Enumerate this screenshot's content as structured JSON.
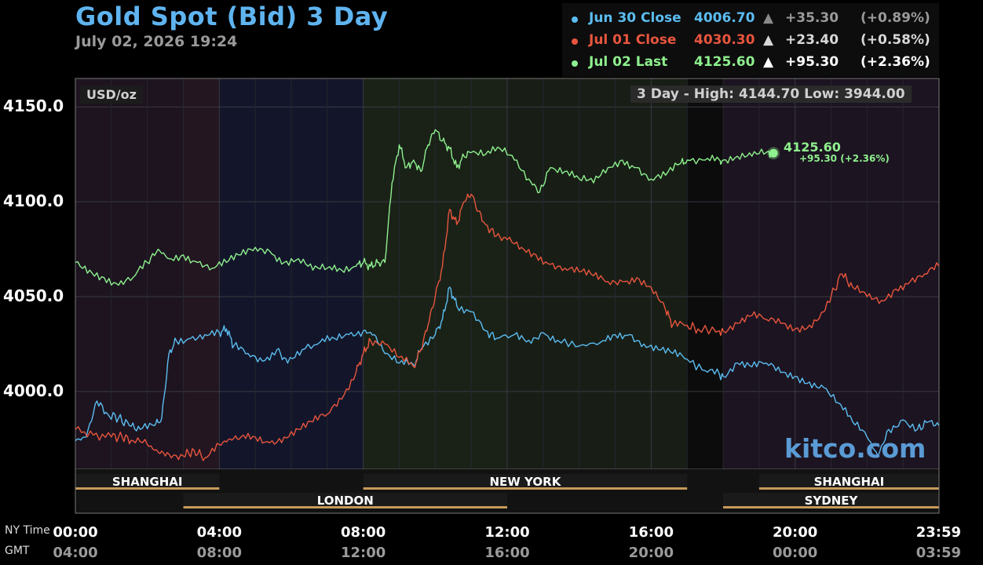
{
  "header": {
    "title": "Gold Spot (Bid) 3 Day",
    "timestamp": "July 02, 2026 19:24"
  },
  "legend": [
    {
      "label": "Jun 30 Close",
      "value": "4006.70",
      "arrow": "▲",
      "change": "+35.30",
      "pct": "(+0.89%)",
      "color": "#5bbcf0",
      "arrow_color": "#8a8a8a",
      "change_color": "#9a9a9a"
    },
    {
      "label": "Jul 01 Close",
      "value": "4030.30",
      "arrow": "▲",
      "change": "+23.40",
      "pct": "(+0.58%)",
      "color": "#e8553e",
      "arrow_color": "#d8d8d8",
      "change_color": "#d8d8d8"
    },
    {
      "label": "Jul 02 Last",
      "value": "4125.60",
      "arrow": "▲",
      "change": "+95.30",
      "pct": "(+2.36%)",
      "color": "#8ef08e",
      "arrow_color": "#ffffff",
      "change_color": "#ffffff"
    }
  ],
  "chart_info": {
    "units": "USD/oz",
    "hilo": "3 Day - High: 4144.70  Low: 3944.00",
    "last_label": "4125.60",
    "last_change": "+95.30 (+2.36%)",
    "watermark": "kitco.com",
    "ny_time_label": "NY Time",
    "gmt_label": "GMT"
  },
  "chart_data": {
    "type": "line",
    "ylim": [
      3959,
      4165
    ],
    "xlim_hours": [
      0,
      24
    ],
    "y_ticks": [
      {
        "value": 4000,
        "label": "4000.0"
      },
      {
        "value": 4050,
        "label": "4050.0"
      },
      {
        "value": 4100,
        "label": "4100.0"
      },
      {
        "value": 4150,
        "label": "4150.0"
      }
    ],
    "x_ticks": [
      {
        "hour": 0,
        "ny": "00:00",
        "gmt": "04:00"
      },
      {
        "hour": 4,
        "ny": "04:00",
        "gmt": "08:00"
      },
      {
        "hour": 8,
        "ny": "08:00",
        "gmt": "12:00"
      },
      {
        "hour": 12,
        "ny": "12:00",
        "gmt": "16:00"
      },
      {
        "hour": 16,
        "ny": "16:00",
        "gmt": "20:00"
      },
      {
        "hour": 20,
        "ny": "20:00",
        "gmt": "00:00"
      },
      {
        "hour": 23.98,
        "ny": "23:59",
        "gmt": "03:59"
      }
    ],
    "sessions": [
      {
        "name": "SHANGHAI",
        "start": 0,
        "end": 4,
        "row": 1
      },
      {
        "name": "NEW YORK",
        "start": 8,
        "end": 17,
        "row": 1
      },
      {
        "name": "SHANGHAI",
        "start": 19,
        "end": 24,
        "row": 1
      },
      {
        "name": "LONDON",
        "start": 3,
        "end": 12,
        "row": 2
      },
      {
        "name": "SYDNEY",
        "start": 18,
        "end": 24,
        "row": 2
      }
    ],
    "series": [
      {
        "name": "Jun 30 Close",
        "color": "#5bbcf0",
        "points": [
          [
            0,
            3974
          ],
          [
            0.3,
            3976
          ],
          [
            0.6,
            3995
          ],
          [
            0.9,
            3988
          ],
          [
            1.2,
            3986
          ],
          [
            1.5,
            3982
          ],
          [
            1.8,
            3980
          ],
          [
            2.2,
            3982
          ],
          [
            2.4,
            3986
          ],
          [
            2.6,
            4020
          ],
          [
            2.8,
            4027
          ],
          [
            3.2,
            4028
          ],
          [
            3.6,
            4030
          ],
          [
            4,
            4031
          ],
          [
            4.2,
            4033
          ],
          [
            4.4,
            4024
          ],
          [
            4.8,
            4020
          ],
          [
            5.2,
            4016
          ],
          [
            5.6,
            4022
          ],
          [
            5.9,
            4015
          ],
          [
            6.3,
            4022
          ],
          [
            6.8,
            4026
          ],
          [
            7.2,
            4028
          ],
          [
            7.6,
            4030
          ],
          [
            8,
            4032
          ],
          [
            8.3,
            4030
          ],
          [
            8.6,
            4020
          ],
          [
            9,
            4015
          ],
          [
            9.4,
            4014
          ],
          [
            9.6,
            4022
          ],
          [
            10,
            4030
          ],
          [
            10.2,
            4038
          ],
          [
            10.4,
            4055
          ],
          [
            10.6,
            4045
          ],
          [
            11,
            4042
          ],
          [
            11.4,
            4032
          ],
          [
            11.7,
            4028
          ],
          [
            12.2,
            4030
          ],
          [
            12.6,
            4027
          ],
          [
            13,
            4031
          ],
          [
            13.4,
            4027
          ],
          [
            14,
            4024
          ],
          [
            14.6,
            4026
          ],
          [
            15,
            4030
          ],
          [
            15.4,
            4030
          ],
          [
            15.8,
            4025
          ],
          [
            16.2,
            4022
          ],
          [
            16.6,
            4020
          ],
          [
            17,
            4017
          ],
          [
            17.5,
            4011
          ],
          [
            17.9,
            4009
          ],
          [
            18,
            4008
          ],
          [
            18.4,
            4015
          ],
          [
            18.8,
            4013
          ],
          [
            19.2,
            4015
          ],
          [
            19.6,
            4010
          ],
          [
            20,
            4008
          ],
          [
            20.4,
            4005
          ],
          [
            20.8,
            4002
          ],
          [
            21.2,
            3994
          ],
          [
            21.6,
            3984
          ],
          [
            22,
            3976
          ],
          [
            22.3,
            3966
          ],
          [
            22.6,
            3980
          ],
          [
            23,
            3985
          ],
          [
            23.4,
            3980
          ],
          [
            23.7,
            3984
          ],
          [
            24,
            3982
          ]
        ]
      },
      {
        "name": "Jul 01 Close",
        "color": "#e8553e",
        "points": [
          [
            0,
            3980
          ],
          [
            0.5,
            3977
          ],
          [
            1,
            3976
          ],
          [
            1.3,
            3976
          ],
          [
            1.6,
            3974
          ],
          [
            2,
            3972
          ],
          [
            2.3,
            3968
          ],
          [
            2.6,
            3967
          ],
          [
            3,
            3966
          ],
          [
            3.3,
            3969
          ],
          [
            3.6,
            3965
          ],
          [
            4,
            3972
          ],
          [
            4.3,
            3975
          ],
          [
            4.6,
            3976
          ],
          [
            5,
            3976
          ],
          [
            5.4,
            3973
          ],
          [
            5.8,
            3976
          ],
          [
            6.2,
            3980
          ],
          [
            6.6,
            3984
          ],
          [
            7,
            3988
          ],
          [
            7.4,
            3996
          ],
          [
            7.8,
            4010
          ],
          [
            8,
            4020
          ],
          [
            8.2,
            4027
          ],
          [
            8.6,
            4025
          ],
          [
            9,
            4018
          ],
          [
            9.4,
            4013
          ],
          [
            9.6,
            4022
          ],
          [
            9.8,
            4035
          ],
          [
            10,
            4050
          ],
          [
            10.2,
            4066
          ],
          [
            10.4,
            4096
          ],
          [
            10.6,
            4088
          ],
          [
            10.8,
            4100
          ],
          [
            11,
            4104
          ],
          [
            11.2,
            4095
          ],
          [
            11.4,
            4088
          ],
          [
            11.7,
            4082
          ],
          [
            12,
            4080
          ],
          [
            12.4,
            4076
          ],
          [
            12.8,
            4072
          ],
          [
            13.2,
            4067
          ],
          [
            13.6,
            4065
          ],
          [
            14,
            4063
          ],
          [
            14.4,
            4061
          ],
          [
            14.8,
            4058
          ],
          [
            15.2,
            4058
          ],
          [
            15.6,
            4060
          ],
          [
            16,
            4055
          ],
          [
            16.4,
            4043
          ],
          [
            16.6,
            4035
          ],
          [
            17,
            4035
          ],
          [
            17.3,
            4033
          ],
          [
            17.9,
            4032
          ],
          [
            18,
            4032
          ],
          [
            18.4,
            4036
          ],
          [
            18.8,
            4040
          ],
          [
            19.2,
            4038
          ],
          [
            19.6,
            4036
          ],
          [
            20,
            4033
          ],
          [
            20.4,
            4035
          ],
          [
            20.8,
            4042
          ],
          [
            21,
            4050
          ],
          [
            21.3,
            4062
          ],
          [
            21.6,
            4055
          ],
          [
            22,
            4050
          ],
          [
            22.4,
            4048
          ],
          [
            22.8,
            4054
          ],
          [
            23.2,
            4058
          ],
          [
            23.6,
            4062
          ],
          [
            24,
            4066
          ]
        ]
      },
      {
        "name": "Jul 02 Last",
        "color": "#8ef08e",
        "points": [
          [
            0,
            4068
          ],
          [
            0.4,
            4064
          ],
          [
            0.8,
            4060
          ],
          [
            1.2,
            4056
          ],
          [
            1.6,
            4060
          ],
          [
            2,
            4068
          ],
          [
            2.3,
            4075
          ],
          [
            2.6,
            4070
          ],
          [
            3,
            4072
          ],
          [
            3.4,
            4068
          ],
          [
            3.8,
            4065
          ],
          [
            4.2,
            4068
          ],
          [
            4.6,
            4072
          ],
          [
            5,
            4076
          ],
          [
            5.4,
            4074
          ],
          [
            5.8,
            4068
          ],
          [
            6.2,
            4070
          ],
          [
            6.6,
            4064
          ],
          [
            7,
            4065
          ],
          [
            7.4,
            4064
          ],
          [
            7.8,
            4066
          ],
          [
            8,
            4068
          ],
          [
            8.2,
            4066
          ],
          [
            8.4,
            4068
          ],
          [
            8.6,
            4068
          ],
          [
            8.8,
            4110
          ],
          [
            9,
            4130
          ],
          [
            9.2,
            4118
          ],
          [
            9.4,
            4122
          ],
          [
            9.6,
            4116
          ],
          [
            9.8,
            4130
          ],
          [
            10,
            4138
          ],
          [
            10.2,
            4132
          ],
          [
            10.4,
            4128
          ],
          [
            10.6,
            4118
          ],
          [
            10.8,
            4124
          ],
          [
            11,
            4126
          ],
          [
            11.4,
            4125
          ],
          [
            11.8,
            4128
          ],
          [
            12.2,
            4122
          ],
          [
            12.6,
            4112
          ],
          [
            12.9,
            4105
          ],
          [
            13.2,
            4118
          ],
          [
            13.6,
            4116
          ],
          [
            14,
            4112
          ],
          [
            14.4,
            4110
          ],
          [
            14.8,
            4118
          ],
          [
            15.2,
            4122
          ],
          [
            15.6,
            4118
          ],
          [
            16,
            4112
          ],
          [
            16.4,
            4114
          ],
          [
            16.8,
            4120
          ],
          [
            17,
            4122
          ],
          [
            17.5,
            4122
          ],
          [
            17.9,
            4122
          ],
          [
            18,
            4122
          ],
          [
            18.4,
            4124
          ],
          [
            18.8,
            4124
          ],
          [
            19.2,
            4126
          ],
          [
            19.4,
            4125.6
          ]
        ]
      }
    ]
  }
}
